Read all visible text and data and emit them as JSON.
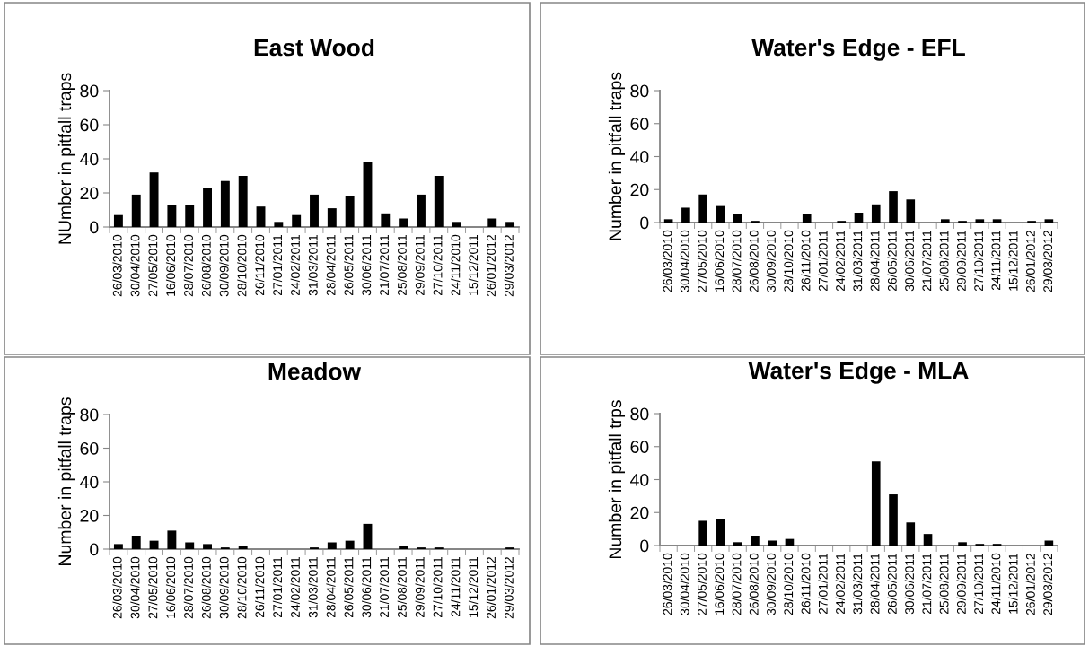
{
  "chart_data": [
    {
      "type": "bar",
      "title": "East Wood",
      "ylabel": "NUmber in pitfall traps",
      "color": "#000000",
      "ylim": [
        0,
        80
      ],
      "yticks": [
        0,
        20,
        40,
        60,
        80
      ],
      "grid": false,
      "categories": [
        "26/03/2010",
        "30/04/2010",
        "27/05/2010",
        "16/06/2010",
        "28/07/2010",
        "26/08/2010",
        "30/09/2010",
        "28/10/2010",
        "26/11/2010",
        "27/01/2011",
        "24/02/2011",
        "31/03/2011",
        "28/04/2011",
        "26/05/2011",
        "30/06/2011",
        "21/07/2011",
        "25/08/2011",
        "29/09/2011",
        "27/10/2011",
        "24/11/2010",
        "15/12/2011",
        "26/01/2012",
        "29/03/2012"
      ],
      "values": [
        7,
        19,
        32,
        13,
        13,
        23,
        27,
        30,
        12,
        3,
        7,
        19,
        11,
        18,
        38,
        8,
        5,
        19,
        30,
        3,
        0,
        5,
        3
      ]
    },
    {
      "type": "bar",
      "title": "Water's Edge - EFL",
      "ylabel": "Number in pitfall traps",
      "color": "#000000",
      "ylim": [
        0,
        80
      ],
      "yticks": [
        0,
        20,
        40,
        60,
        80
      ],
      "grid": false,
      "categories": [
        "26/03/2010",
        "30/04/2010",
        "27/05/2010",
        "16/06/2010",
        "28/07/2010",
        "26/08/2010",
        "30/09/2010",
        "28/10/2010",
        "26/11/2010",
        "27/01/2011",
        "24/02/2011",
        "31/03/2011",
        "28/04/2011",
        "26/05/2011",
        "30/06/2011",
        "21/07/2011",
        "25/08/2011",
        "29/09/2011",
        "27/10/2011",
        "24/11/2011",
        "15/12/2011",
        "26/01/2012",
        "29/03/2012"
      ],
      "values": [
        2,
        9,
        17,
        10,
        5,
        1,
        0,
        0,
        5,
        0,
        1,
        6,
        11,
        19,
        14,
        0,
        2,
        1,
        2,
        2,
        0,
        1,
        2
      ]
    },
    {
      "type": "bar",
      "title": "Meadow",
      "ylabel": "Number in pitfall traps",
      "color": "#000000",
      "ylim": [
        0,
        80
      ],
      "yticks": [
        0,
        20,
        40,
        60,
        80
      ],
      "grid": false,
      "categories": [
        "26/03/2010",
        "30/04/2010",
        "27/05/2010",
        "16/06/2010",
        "28/07/2010",
        "26/08/2010",
        "30/09/2010",
        "28/10/2010",
        "26/11/2010",
        "27/01/2011",
        "24/02/2011",
        "31/03/2011",
        "28/04/2011",
        "26/05/2011",
        "30/06/2011",
        "21/07/2011",
        "25/08/2011",
        "29/09/2011",
        "27/10/2011",
        "24/11/2011",
        "15/12/2011",
        "26/01/2012",
        "29/03/2012"
      ],
      "values": [
        3,
        8,
        5,
        11,
        4,
        3,
        1,
        2,
        0,
        0,
        0,
        1,
        4,
        5,
        15,
        0,
        2,
        1,
        1,
        0,
        0,
        0,
        1
      ]
    },
    {
      "type": "bar",
      "title": "Water's Edge - MLA",
      "ylabel": "Number in pitfall trps",
      "color": "#000000",
      "ylim": [
        0,
        80
      ],
      "yticks": [
        0,
        20,
        40,
        60,
        80
      ],
      "grid": false,
      "categories": [
        "26/03/2010",
        "30/04/2010",
        "27/05/2010",
        "16/06/2010",
        "28/07/2010",
        "26/08/2010",
        "30/09/2010",
        "28/10/2010",
        "26/11/2010",
        "27/01/2011",
        "24/02/2011",
        "31/03/2011",
        "28/04/2011",
        "26/05/2011",
        "30/06/2011",
        "21/07/2011",
        "25/08/2011",
        "29/09/2011",
        "27/10/2011",
        "24/11/2010",
        "15/12/2011",
        "26/01/2012",
        "29/03/2012"
      ],
      "values": [
        0,
        0,
        15,
        16,
        2,
        6,
        3,
        4,
        0,
        0,
        0,
        0,
        51,
        31,
        14,
        7,
        0,
        2,
        1,
        1,
        0,
        0,
        3
      ]
    }
  ]
}
